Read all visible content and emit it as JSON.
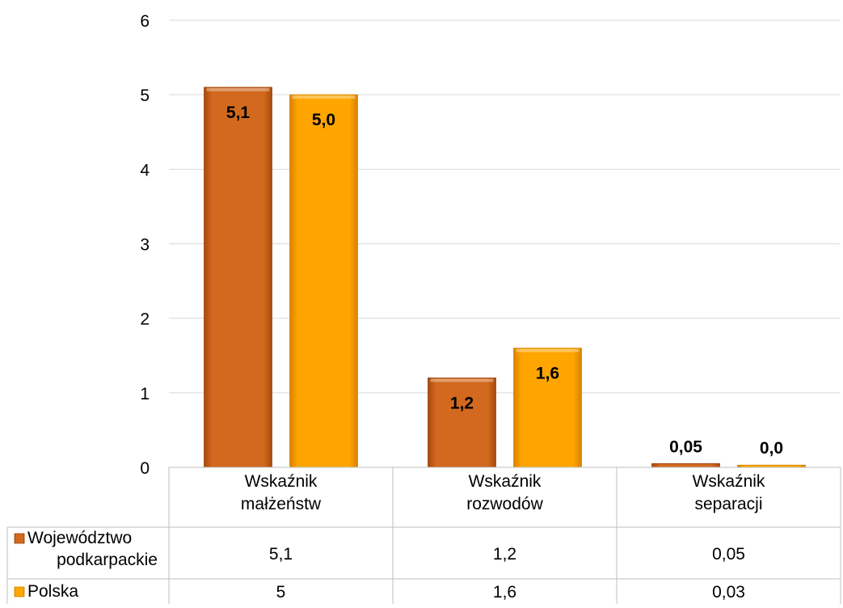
{
  "chart_data": {
    "type": "bar",
    "categories": [
      "Wskaźnik małżeństw",
      "Wskaźnik rozwodów",
      "Wskaźnik separacji"
    ],
    "category_lines": [
      [
        "Wskaźnik",
        "małżeństw"
      ],
      [
        "Wskaźnik",
        "rozwodów"
      ],
      [
        "Wskaźnik",
        "separacji"
      ]
    ],
    "series": [
      {
        "name": "Województwo podkarpackie",
        "name_lines": [
          "Województwo",
          "podkarpackie"
        ],
        "values": [
          5.1,
          1.2,
          0.05
        ],
        "bar_labels": [
          "5,1",
          "1,2",
          "0,05"
        ],
        "table_values": [
          "5,1",
          "1,2",
          "0,05"
        ],
        "color": "#D2691E"
      },
      {
        "name": "Polska",
        "name_lines": [
          "Polska"
        ],
        "values": [
          5.0,
          1.6,
          0.03
        ],
        "bar_labels": [
          "5,0",
          "1,6",
          "0,0"
        ],
        "table_values": [
          "5",
          "1,6",
          "0,03"
        ],
        "color": "#FFA500"
      }
    ],
    "y_ticks": [
      "0",
      "1",
      "2",
      "3",
      "4",
      "5",
      "6"
    ],
    "ylim": [
      0,
      6
    ],
    "grid": true,
    "legend": "data-table"
  }
}
